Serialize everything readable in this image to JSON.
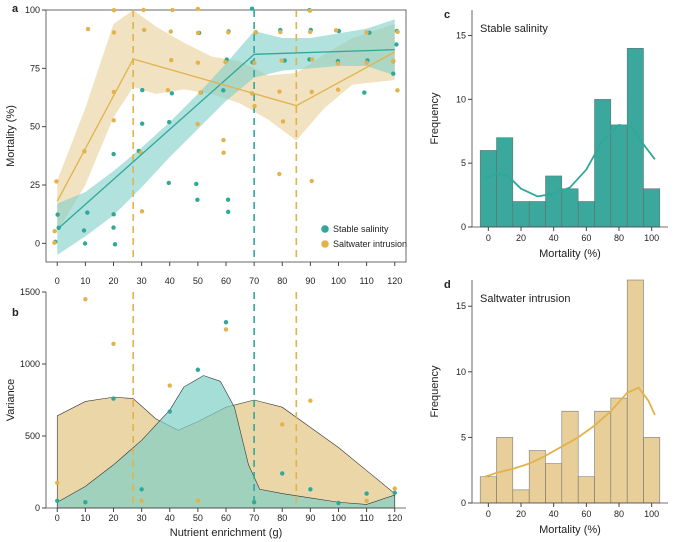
{
  "colors": {
    "stable": "#2fa89a",
    "saltwater": "#e3b24b",
    "stable_fill": "#7fcfc6",
    "saltwater_fill": "#e8cf99",
    "hist_stable": "#3aa89c",
    "hist_salt": "#e8cf99"
  },
  "chart_data": [
    {
      "panel": "a",
      "type": "scatter",
      "ylabel": "Mortality (%)",
      "xlim": [
        -4,
        124
      ],
      "ylim": [
        -8,
        100
      ],
      "xticks": [
        "0",
        "10",
        "20",
        "30",
        "40",
        "50",
        "60",
        "70",
        "80",
        "90",
        "100",
        "110",
        "120"
      ],
      "yticks": [
        "0",
        "25",
        "50",
        "75",
        "100"
      ],
      "legend": {
        "position": "bottom-right",
        "entries": [
          "Stable salinity",
          "Saltwater intrusion"
        ]
      },
      "vlines": [
        {
          "x": 27,
          "series": "Saltwater intrusion"
        },
        {
          "x": 70,
          "series": "Stable salinity"
        },
        {
          "x": 85,
          "series": "Saltwater intrusion"
        }
      ],
      "series": [
        {
          "name": "Stable salinity",
          "points": [
            [
              0,
              0
            ],
            [
              0,
              6
            ],
            [
              0,
              13
            ],
            [
              10,
              0
            ],
            [
              10,
              6
            ],
            [
              10,
              13
            ],
            [
              20,
              0
            ],
            [
              20,
              6
            ],
            [
              20,
              13
            ],
            [
              20,
              39
            ],
            [
              30,
              39
            ],
            [
              30,
              52
            ],
            [
              30,
              65
            ],
            [
              40,
              52
            ],
            [
              40,
              65
            ],
            [
              40,
              26
            ],
            [
              50,
              19
            ],
            [
              50,
              26
            ],
            [
              50,
              65
            ],
            [
              50,
              91
            ],
            [
              60,
              13
            ],
            [
              60,
              19
            ],
            [
              60,
              65
            ],
            [
              60,
              78
            ],
            [
              60,
              91
            ],
            [
              70,
              78
            ],
            [
              70,
              91
            ],
            [
              70,
              100
            ],
            [
              80,
              78
            ],
            [
              80,
              91
            ],
            [
              90,
              78
            ],
            [
              90,
              91
            ],
            [
              90,
              100
            ],
            [
              100,
              78
            ],
            [
              100,
              91
            ],
            [
              110,
              65
            ],
            [
              110,
              78
            ],
            [
              110,
              91
            ],
            [
              120,
              72
            ],
            [
              120,
              78
            ],
            [
              120,
              85
            ],
            [
              120,
              91
            ]
          ],
          "fit": [
            [
              0,
              6
            ],
            [
              70,
              81
            ],
            [
              120,
              83
            ]
          ],
          "band": [
            [
              0,
              -5,
              17
            ],
            [
              10,
              3,
              22
            ],
            [
              20,
              12,
              31
            ],
            [
              30,
              24,
              41
            ],
            [
              40,
              37,
              52
            ],
            [
              50,
              49,
              64
            ],
            [
              60,
              61,
              77
            ],
            [
              70,
              71,
              91
            ],
            [
              80,
              74,
              88
            ],
            [
              90,
              75,
              88
            ],
            [
              100,
              76,
              90
            ],
            [
              110,
              76,
              92
            ],
            [
              120,
              72,
              96
            ]
          ]
        },
        {
          "name": "Saltwater intrusion",
          "points": [
            [
              0,
              0
            ],
            [
              0,
              6
            ],
            [
              0,
              26
            ],
            [
              10,
              39
            ],
            [
              10,
              91
            ],
            [
              20,
              52
            ],
            [
              20,
              65
            ],
            [
              20,
              91
            ],
            [
              20,
              100
            ],
            [
              30,
              13
            ],
            [
              30,
              39
            ],
            [
              30,
              91
            ],
            [
              30,
              100
            ],
            [
              40,
              65
            ],
            [
              40,
              78
            ],
            [
              40,
              91
            ],
            [
              40,
              100
            ],
            [
              50,
              52
            ],
            [
              50,
              65
            ],
            [
              50,
              78
            ],
            [
              50,
              91
            ],
            [
              50,
              100
            ],
            [
              60,
              39
            ],
            [
              60,
              45
            ],
            [
              60,
              78
            ],
            [
              60,
              91
            ],
            [
              70,
              58
            ],
            [
              70,
              65
            ],
            [
              70,
              78
            ],
            [
              70,
              91
            ],
            [
              80,
              30
            ],
            [
              80,
              52
            ],
            [
              80,
              65
            ],
            [
              80,
              78
            ],
            [
              80,
              91
            ],
            [
              90,
              26
            ],
            [
              90,
              65
            ],
            [
              90,
              78
            ],
            [
              90,
              91
            ],
            [
              90,
              100
            ],
            [
              100,
              65
            ],
            [
              100,
              78
            ],
            [
              100,
              91
            ],
            [
              110,
              78
            ],
            [
              110,
              91
            ],
            [
              120,
              65
            ],
            [
              120,
              78
            ],
            [
              120,
              91
            ]
          ],
          "fit": [
            [
              0,
              18
            ],
            [
              27,
              79
            ],
            [
              85,
              59
            ],
            [
              120,
              82
            ]
          ],
          "band": [
            [
              0,
              5,
              27
            ],
            [
              10,
              25,
              58
            ],
            [
              20,
              54,
              94
            ],
            [
              27,
              67,
              100
            ],
            [
              35,
              64,
              93
            ],
            [
              45,
              66,
              86
            ],
            [
              55,
              64,
              80
            ],
            [
              65,
              60,
              78
            ],
            [
              75,
              53,
              72
            ],
            [
              85,
              44,
              73
            ],
            [
              95,
              58,
              81
            ],
            [
              105,
              68,
              88
            ],
            [
              120,
              70,
              94
            ]
          ]
        }
      ]
    },
    {
      "panel": "b",
      "type": "area",
      "xlabel": "Nutrient enrichment (g)",
      "ylabel": "Variance",
      "xlim": [
        -4,
        124
      ],
      "ylim": [
        0,
        1500
      ],
      "xticks": [
        "0",
        "10",
        "20",
        "30",
        "40",
        "50",
        "60",
        "70",
        "80",
        "90",
        "100",
        "110",
        "120"
      ],
      "yticks": [
        "0",
        "500",
        "1000",
        "1500"
      ],
      "vlines": [
        {
          "x": 27,
          "series": "Saltwater intrusion"
        },
        {
          "x": 70,
          "series": "Stable salinity"
        },
        {
          "x": 85,
          "series": "Saltwater intrusion"
        }
      ],
      "series": [
        {
          "name": "Saltwater intrusion",
          "density": [
            [
              0,
              640
            ],
            [
              10,
              740
            ],
            [
              20,
              770
            ],
            [
              27,
              760
            ],
            [
              35,
              620
            ],
            [
              43,
              540
            ],
            [
              50,
              600
            ],
            [
              60,
              700
            ],
            [
              70,
              750
            ],
            [
              80,
              700
            ],
            [
              90,
              560
            ],
            [
              100,
              420
            ],
            [
              110,
              260
            ],
            [
              120,
              100
            ]
          ],
          "points": [
            [
              0,
              175
            ],
            [
              10,
              1450
            ],
            [
              20,
              1140
            ],
            [
              30,
              50
            ],
            [
              40,
              850
            ],
            [
              50,
              50
            ],
            [
              60,
              1240
            ],
            [
              70,
              40
            ],
            [
              80,
              580
            ],
            [
              90,
              745
            ],
            [
              110,
              50
            ],
            [
              120,
              135
            ]
          ]
        },
        {
          "name": "Stable salinity",
          "density": [
            [
              0,
              40
            ],
            [
              10,
              150
            ],
            [
              20,
              300
            ],
            [
              30,
              470
            ],
            [
              40,
              680
            ],
            [
              45,
              840
            ],
            [
              52,
              920
            ],
            [
              58,
              880
            ],
            [
              63,
              700
            ],
            [
              68,
              300
            ],
            [
              72,
              130
            ],
            [
              80,
              100
            ],
            [
              90,
              70
            ],
            [
              100,
              40
            ],
            [
              110,
              25
            ],
            [
              120,
              90
            ]
          ],
          "points": [
            [
              0,
              50
            ],
            [
              10,
              40
            ],
            [
              20,
              760
            ],
            [
              30,
              130
            ],
            [
              40,
              670
            ],
            [
              50,
              960
            ],
            [
              60,
              1290
            ],
            [
              70,
              40
            ],
            [
              80,
              240
            ],
            [
              90,
              130
            ],
            [
              100,
              35
            ],
            [
              110,
              100
            ],
            [
              120,
              105
            ]
          ]
        }
      ]
    },
    {
      "panel": "c",
      "type": "bar",
      "title": "Stable salinity",
      "xlabel": "Mortality (%)",
      "ylabel": "Frequency",
      "xlim": [
        -10,
        110
      ],
      "ylim": [
        0,
        17
      ],
      "xticks": [
        "0",
        "20",
        "40",
        "60",
        "80",
        "100"
      ],
      "yticks": [
        "0",
        "5",
        "10",
        "15"
      ],
      "bin_edges": [
        -5,
        5,
        15,
        25,
        35,
        45,
        55,
        65,
        75,
        85,
        95,
        105
      ],
      "values": [
        6,
        7,
        2,
        2,
        4,
        3,
        2,
        10,
        8,
        14,
        3
      ],
      "kde": [
        [
          -2,
          3.8
        ],
        [
          5,
          4.2
        ],
        [
          12,
          4.0
        ],
        [
          20,
          3.0
        ],
        [
          30,
          2.4
        ],
        [
          40,
          2.6
        ],
        [
          50,
          3.1
        ],
        [
          60,
          4.5
        ],
        [
          70,
          6.8
        ],
        [
          80,
          8.0
        ],
        [
          88,
          7.8
        ],
        [
          96,
          6.3
        ],
        [
          102,
          5.3
        ]
      ]
    },
    {
      "panel": "d",
      "type": "bar",
      "title": "Saltwater intrusion",
      "xlabel": "Mortality (%)",
      "ylabel": "Frequency",
      "xlim": [
        -10,
        110
      ],
      "ylim": [
        0,
        17
      ],
      "xticks": [
        "0",
        "20",
        "40",
        "60",
        "80",
        "100"
      ],
      "yticks": [
        "0",
        "5",
        "10",
        "15"
      ],
      "bin_edges": [
        -5,
        5,
        15,
        25,
        35,
        45,
        55,
        65,
        75,
        85,
        95,
        105
      ],
      "values": [
        2,
        5,
        1,
        4,
        3,
        7,
        2,
        7,
        8,
        17,
        5
      ],
      "kde": [
        [
          -2,
          2.0
        ],
        [
          5,
          2.3
        ],
        [
          15,
          2.6
        ],
        [
          25,
          3.0
        ],
        [
          35,
          3.6
        ],
        [
          45,
          4.3
        ],
        [
          55,
          5.0
        ],
        [
          65,
          5.9
        ],
        [
          75,
          7.0
        ],
        [
          85,
          8.4
        ],
        [
          92,
          8.8
        ],
        [
          98,
          7.8
        ],
        [
          102,
          6.7
        ]
      ]
    }
  ]
}
